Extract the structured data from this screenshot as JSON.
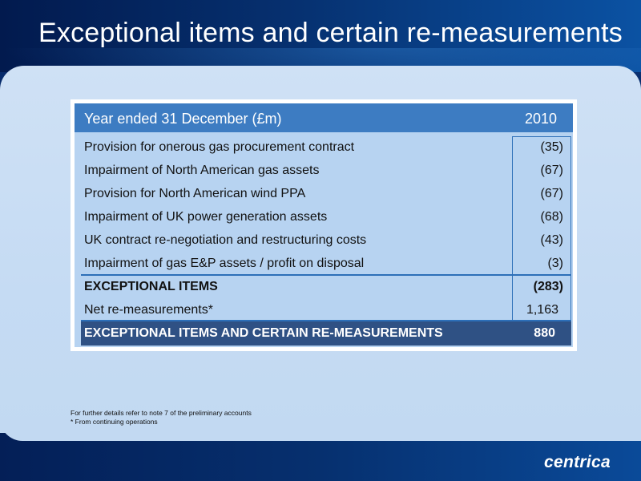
{
  "slide": {
    "title": "Exceptional items and certain re-measurements",
    "logo_text": "centrica"
  },
  "table": {
    "header_label": "Year ended 31 December (£m)",
    "header_year": "2010",
    "rows": [
      {
        "label": "Provision for onerous gas procurement contract",
        "value": "(35)"
      },
      {
        "label": "Impairment of North American gas assets",
        "value": "(67)"
      },
      {
        "label": "Provision for North American wind PPA",
        "value": "(67)"
      },
      {
        "label": "Impairment of UK power generation assets",
        "value": "(68)"
      },
      {
        "label": "UK contract re-negotiation and restructuring costs",
        "value": "(43)"
      },
      {
        "label": "Impairment of gas E&P assets / profit on disposal",
        "value": "(3)"
      }
    ],
    "exceptional": {
      "label": "EXCEPTIONAL ITEMS",
      "value": "(283)"
    },
    "net": {
      "label": "Net re-measurements*",
      "value": "1,163"
    },
    "total": {
      "label": "EXCEPTIONAL ITEMS AND CERTAIN RE-MEASUREMENTS",
      "value": "880"
    }
  },
  "footnotes": {
    "line1": "For further details refer to note 7 of the preliminary accounts",
    "line2": "* From continuing operations"
  },
  "colors": {
    "header_navy": "#021a4e",
    "table_header": "#3d7cc2",
    "table_body": "#b7d3f1",
    "total_row": "#2f5184",
    "accent_line": "#2d6fb8"
  }
}
